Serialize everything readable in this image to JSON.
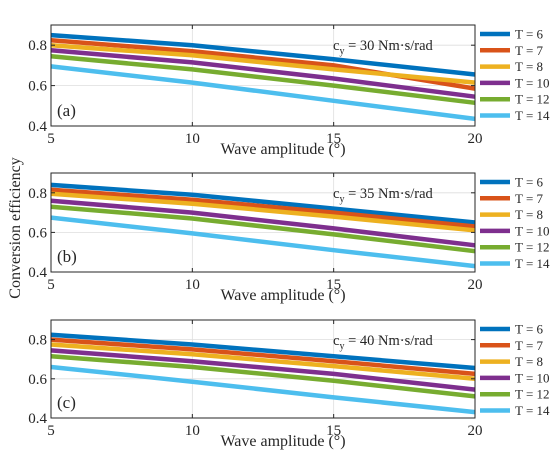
{
  "figure": {
    "ylabel": "Conversion efficiency"
  },
  "chart_data": [
    {
      "type": "line",
      "panel_label": "(a)",
      "annotation": "c_y = 30 Nm·s/rad",
      "annotation_main": "c",
      "annotation_sub": "y",
      "annotation_rest": " = 30 Nm·s/rad",
      "xlabel": "Wave amplitude (°)",
      "ylabel": "Conversion efficiency",
      "xlim": [
        5,
        20
      ],
      "ylim": [
        0.4,
        0.9
      ],
      "xticks": [
        "5",
        "10",
        "15",
        "20"
      ],
      "yticks": [
        "0.4",
        "0.6",
        "0.8"
      ],
      "grid": true,
      "legend_position": "right",
      "x": [
        5,
        10,
        15,
        20
      ],
      "series": [
        {
          "name": "T = 6",
          "color": "#0072BD",
          "values": [
            0.85,
            0.8,
            0.73,
            0.655
          ]
        },
        {
          "name": "T = 7",
          "color": "#D95319",
          "values": [
            0.825,
            0.77,
            0.7,
            0.585
          ]
        },
        {
          "name": "T = 8",
          "color": "#EDB120",
          "values": [
            0.8,
            0.75,
            0.68,
            0.615
          ]
        },
        {
          "name": "T = 10",
          "color": "#7E2F8E",
          "values": [
            0.775,
            0.715,
            0.635,
            0.545
          ]
        },
        {
          "name": "T = 12",
          "color": "#77AC30",
          "values": [
            0.745,
            0.68,
            0.6,
            0.515
          ]
        },
        {
          "name": "T = 14",
          "color": "#4DBEEE",
          "values": [
            0.695,
            0.615,
            0.525,
            0.435
          ]
        }
      ]
    },
    {
      "type": "line",
      "panel_label": "(b)",
      "annotation": "c_y = 35 Nm·s/rad",
      "annotation_main": "c",
      "annotation_sub": "y",
      "annotation_rest": " = 35 Nm·s/rad",
      "xlabel": "Wave amplitude (°)",
      "ylabel": "Conversion efficiency",
      "xlim": [
        5,
        20
      ],
      "ylim": [
        0.4,
        0.9
      ],
      "xticks": [
        "5",
        "10",
        "15",
        "20"
      ],
      "yticks": [
        "0.4",
        "0.6",
        "0.8"
      ],
      "grid": true,
      "legend_position": "right",
      "x": [
        5,
        10,
        15,
        20
      ],
      "series": [
        {
          "name": "T = 6",
          "color": "#0072BD",
          "values": [
            0.84,
            0.79,
            0.72,
            0.65
          ]
        },
        {
          "name": "T = 7",
          "color": "#D95319",
          "values": [
            0.815,
            0.765,
            0.7,
            0.63
          ]
        },
        {
          "name": "T = 8",
          "color": "#EDB120",
          "values": [
            0.795,
            0.745,
            0.68,
            0.61
          ]
        },
        {
          "name": "T = 10",
          "color": "#7E2F8E",
          "values": [
            0.76,
            0.7,
            0.62,
            0.535
          ]
        },
        {
          "name": "T = 12",
          "color": "#77AC30",
          "values": [
            0.73,
            0.67,
            0.59,
            0.505
          ]
        },
        {
          "name": "T = 14",
          "color": "#4DBEEE",
          "values": [
            0.675,
            0.595,
            0.51,
            0.43
          ]
        }
      ]
    },
    {
      "type": "line",
      "panel_label": "(c)",
      "annotation": "c_y = 40 Nm·s/rad",
      "annotation_main": "c",
      "annotation_sub": "y",
      "annotation_rest": " = 40 Nm·s/rad",
      "xlabel": "Wave amplitude (°)",
      "ylabel": "Conversion efficiency",
      "xlim": [
        5,
        20
      ],
      "ylim": [
        0.4,
        0.9
      ],
      "xticks": [
        "5",
        "10",
        "15",
        "20"
      ],
      "yticks": [
        "0.4",
        "0.6",
        "0.8"
      ],
      "grid": true,
      "legend_position": "right",
      "x": [
        5,
        10,
        15,
        20
      ],
      "series": [
        {
          "name": "T = 6",
          "color": "#0072BD",
          "values": [
            0.825,
            0.775,
            0.715,
            0.655
          ]
        },
        {
          "name": "T = 7",
          "color": "#D95319",
          "values": [
            0.8,
            0.75,
            0.69,
            0.625
          ]
        },
        {
          "name": "T = 8",
          "color": "#EDB120",
          "values": [
            0.775,
            0.725,
            0.665,
            0.6
          ]
        },
        {
          "name": "T = 10",
          "color": "#7E2F8E",
          "values": [
            0.745,
            0.69,
            0.625,
            0.545
          ]
        },
        {
          "name": "T = 12",
          "color": "#77AC30",
          "values": [
            0.715,
            0.66,
            0.59,
            0.51
          ]
        },
        {
          "name": "T = 14",
          "color": "#4DBEEE",
          "values": [
            0.66,
            0.585,
            0.505,
            0.43
          ]
        }
      ]
    }
  ]
}
